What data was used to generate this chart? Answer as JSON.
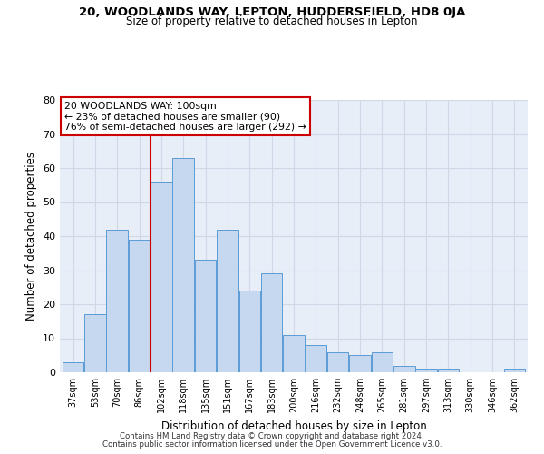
{
  "title": "20, WOODLANDS WAY, LEPTON, HUDDERSFIELD, HD8 0JA",
  "subtitle": "Size of property relative to detached houses in Lepton",
  "xlabel": "Distribution of detached houses by size in Lepton",
  "ylabel": "Number of detached properties",
  "categories": [
    "37sqm",
    "53sqm",
    "70sqm",
    "86sqm",
    "102sqm",
    "118sqm",
    "135sqm",
    "151sqm",
    "167sqm",
    "183sqm",
    "200sqm",
    "216sqm",
    "232sqm",
    "248sqm",
    "265sqm",
    "281sqm",
    "297sqm",
    "313sqm",
    "330sqm",
    "346sqm",
    "362sqm"
  ],
  "values": [
    3,
    17,
    42,
    39,
    56,
    63,
    33,
    42,
    24,
    29,
    11,
    8,
    6,
    5,
    6,
    2,
    1,
    1,
    0,
    0,
    1
  ],
  "bar_color": "#c5d8f0",
  "bar_edge_color": "#5b9bd5",
  "vline_color": "#cc0000",
  "highlight_label": "20 WOODLANDS WAY: 100sqm",
  "annotation_line1": "← 23% of detached houses are smaller (90)",
  "annotation_line2": "76% of semi-detached houses are larger (292) →",
  "annotation_box_color": "#ffffff",
  "annotation_box_edge": "#cc0000",
  "ylim": [
    0,
    80
  ],
  "yticks": [
    0,
    10,
    20,
    30,
    40,
    50,
    60,
    70,
    80
  ],
  "grid_color": "#d0d8e8",
  "bg_color": "#e8eef8",
  "footer1": "Contains HM Land Registry data © Crown copyright and database right 2024.",
  "footer2": "Contains public sector information licensed under the Open Government Licence v3.0."
}
